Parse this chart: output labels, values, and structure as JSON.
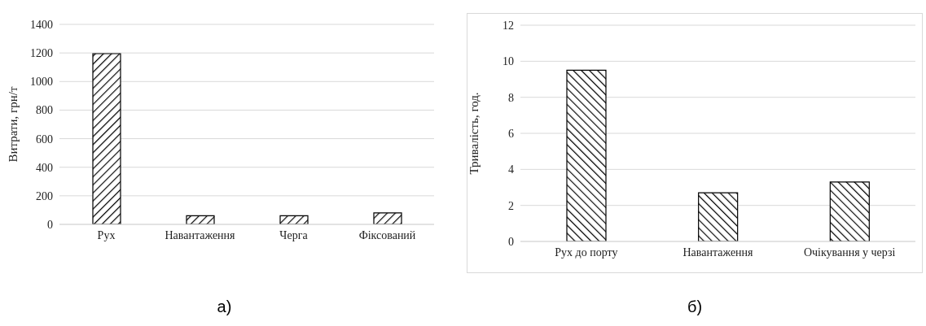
{
  "chart_data": [
    {
      "type": "bar",
      "ylabel": "Витрати, грн/т",
      "categories": [
        "Рух",
        "Навантаження",
        "Черга",
        "Фіксований"
      ],
      "values": [
        1195,
        60,
        60,
        80
      ],
      "color": "#000000",
      "ylim": [
        0,
        1400
      ],
      "yticks": [
        0,
        200,
        400,
        600,
        800,
        1000,
        1200,
        1400
      ],
      "grid": "y",
      "annotations": [
        "а)"
      ]
    },
    {
      "type": "bar",
      "ylabel": "Тривалість, год.",
      "categories": [
        "Рух до порту",
        "Навантаження",
        "Очікування у черзі"
      ],
      "values": [
        9.5,
        2.7,
        3.3
      ],
      "color": "#000000",
      "ylim": [
        0,
        12
      ],
      "yticks": [
        0,
        2,
        4,
        6,
        8,
        10,
        12
      ],
      "grid": "y",
      "annotations": [
        "б)"
      ]
    }
  ]
}
